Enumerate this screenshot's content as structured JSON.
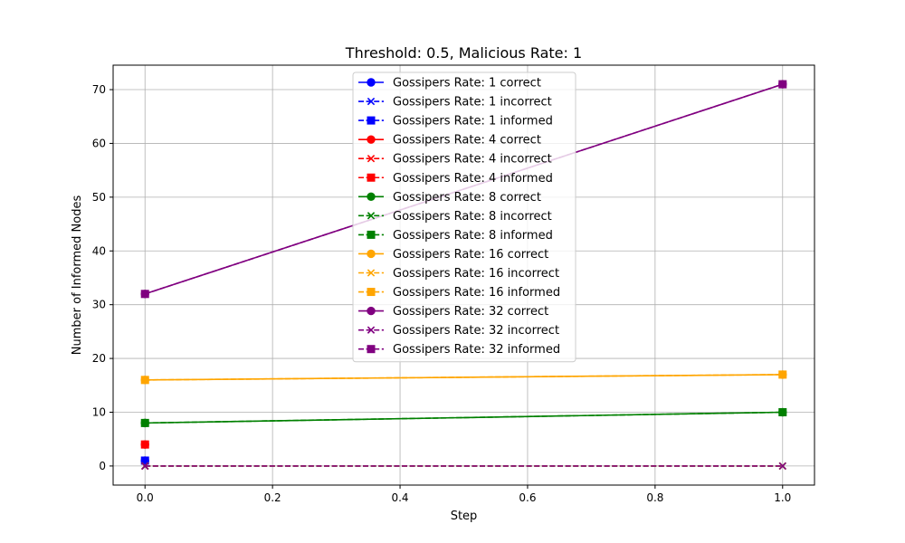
{
  "chart_data": {
    "type": "line",
    "title": "Threshold: 0.5, Malicious Rate: 1",
    "xlabel": "Step",
    "ylabel": "Number of Informed Nodes",
    "xlim": [
      -0.05,
      1.05
    ],
    "ylim": [
      -3.55,
      74.55
    ],
    "xticks": [
      0.0,
      0.2,
      0.4,
      0.6,
      0.8,
      1.0
    ],
    "xtick_labels": [
      "0.0",
      "0.2",
      "0.4",
      "0.6",
      "0.8",
      "1.0"
    ],
    "yticks": [
      0,
      10,
      20,
      30,
      40,
      50,
      60,
      70
    ],
    "ytick_labels": [
      "0",
      "10",
      "20",
      "30",
      "40",
      "50",
      "60",
      "70"
    ],
    "grid": true,
    "legend_position": "top-center",
    "series": [
      {
        "name": "Gossipers Rate: 1 correct",
        "color": "#0000ff",
        "linestyle": "solid",
        "marker": "circle",
        "x": [
          0
        ],
        "y": [
          1
        ]
      },
      {
        "name": "Gossipers Rate: 1 incorrect",
        "color": "#0000ff",
        "linestyle": "dashed",
        "marker": "x",
        "x": [
          0
        ],
        "y": [
          0
        ]
      },
      {
        "name": "Gossipers Rate: 1 informed",
        "color": "#0000ff",
        "linestyle": "dashed",
        "marker": "square",
        "x": [
          0
        ],
        "y": [
          1
        ]
      },
      {
        "name": "Gossipers Rate: 4 correct",
        "color": "#ff0000",
        "linestyle": "solid",
        "marker": "circle",
        "x": [
          0
        ],
        "y": [
          4
        ]
      },
      {
        "name": "Gossipers Rate: 4 incorrect",
        "color": "#ff0000",
        "linestyle": "dashed",
        "marker": "x",
        "x": [
          0
        ],
        "y": [
          0
        ]
      },
      {
        "name": "Gossipers Rate: 4 informed",
        "color": "#ff0000",
        "linestyle": "dashed",
        "marker": "square",
        "x": [
          0
        ],
        "y": [
          4
        ]
      },
      {
        "name": "Gossipers Rate: 8 correct",
        "color": "#008000",
        "linestyle": "solid",
        "marker": "circle",
        "x": [
          0,
          1
        ],
        "y": [
          8,
          10
        ]
      },
      {
        "name": "Gossipers Rate: 8 incorrect",
        "color": "#008000",
        "linestyle": "dashed",
        "marker": "x",
        "x": [
          0,
          1
        ],
        "y": [
          0,
          0
        ]
      },
      {
        "name": "Gossipers Rate: 8 informed",
        "color": "#008000",
        "linestyle": "dashed",
        "marker": "square",
        "x": [
          0,
          1
        ],
        "y": [
          8,
          10
        ]
      },
      {
        "name": "Gossipers Rate: 16 correct",
        "color": "#ffa500",
        "linestyle": "solid",
        "marker": "circle",
        "x": [
          0,
          1
        ],
        "y": [
          16,
          17
        ]
      },
      {
        "name": "Gossipers Rate: 16 incorrect",
        "color": "#ffa500",
        "linestyle": "dashed",
        "marker": "x",
        "x": [
          0,
          1
        ],
        "y": [
          0,
          0
        ]
      },
      {
        "name": "Gossipers Rate: 16 informed",
        "color": "#ffa500",
        "linestyle": "dashed",
        "marker": "square",
        "x": [
          0,
          1
        ],
        "y": [
          16,
          17
        ]
      },
      {
        "name": "Gossipers Rate: 32 correct",
        "color": "#800080",
        "linestyle": "solid",
        "marker": "circle",
        "x": [
          0,
          1
        ],
        "y": [
          32,
          71
        ]
      },
      {
        "name": "Gossipers Rate: 32 incorrect",
        "color": "#800080",
        "linestyle": "dashed",
        "marker": "x",
        "x": [
          0,
          1
        ],
        "y": [
          0,
          0
        ]
      },
      {
        "name": "Gossipers Rate: 32 informed",
        "color": "#800080",
        "linestyle": "dashed",
        "marker": "square",
        "x": [
          0,
          1
        ],
        "y": [
          32,
          71
        ]
      }
    ]
  }
}
